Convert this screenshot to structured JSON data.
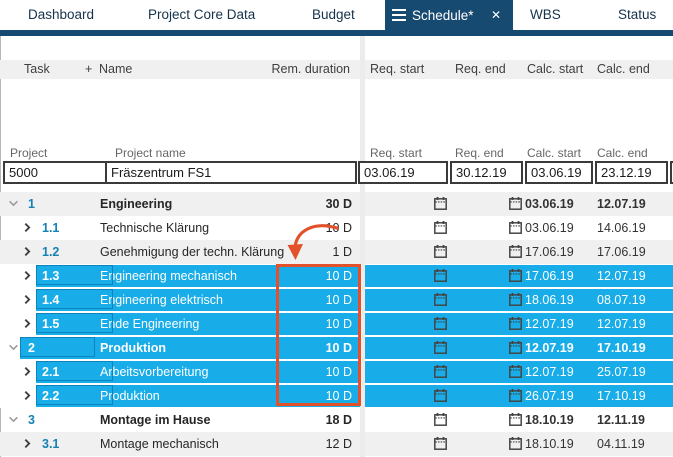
{
  "tabs": {
    "items": [
      {
        "label": "Dashboard"
      },
      {
        "label": "Project Core Data"
      },
      {
        "label": "Budget"
      },
      {
        "label": "Schedule*",
        "active": true,
        "modified": true
      },
      {
        "label": "WBS"
      },
      {
        "label": "Status"
      }
    ]
  },
  "icons": {
    "close": "✕"
  },
  "columns": {
    "task": "Task",
    "add": "+",
    "name": "Name",
    "rem_duration": "Rem. duration",
    "req_start": "Req. start",
    "req_end": "Req. end",
    "calc_start": "Calc. start",
    "calc_end": "Calc. end"
  },
  "project_header": {
    "project": "Project",
    "project_name": "Project name"
  },
  "project": {
    "id": "5000",
    "name": "Fräszentrum FS1",
    "req_start": "03.06.19",
    "req_end": "30.12.19",
    "calc_start": "03.06.19",
    "calc_end": "23.12.19"
  },
  "tasks": [
    {
      "num": "1",
      "name": "Engineering",
      "duration": "30 D",
      "calc_start": "03.06.19",
      "calc_end": "12.07.19",
      "level": 1,
      "parent": true,
      "selected": false
    },
    {
      "num": "1.1",
      "name": "Technische Klärung",
      "duration": "10 D",
      "calc_start": "03.06.19",
      "calc_end": "14.06.19",
      "level": 2,
      "parent": false,
      "selected": false
    },
    {
      "num": "1.2",
      "name": "Genehmigung der techn. Klärung",
      "duration": "1 D",
      "calc_start": "17.06.19",
      "calc_end": "17.06.19",
      "level": 2,
      "parent": false,
      "selected": false
    },
    {
      "num": "1.3",
      "name": "Engineering mechanisch",
      "duration": "10 D",
      "calc_start": "17.06.19",
      "calc_end": "12.07.19",
      "level": 2,
      "parent": false,
      "selected": true
    },
    {
      "num": "1.4",
      "name": "Engineering elektrisch",
      "duration": "10 D",
      "calc_start": "18.06.19",
      "calc_end": "08.07.19",
      "level": 2,
      "parent": false,
      "selected": true
    },
    {
      "num": "1.5",
      "name": "Ende Engineering",
      "duration": "10 D",
      "calc_start": "12.07.19",
      "calc_end": "12.07.19",
      "level": 2,
      "parent": false,
      "selected": true
    },
    {
      "num": "2",
      "name": "Produktion",
      "duration": "10 D",
      "calc_start": "12.07.19",
      "calc_end": "17.10.19",
      "level": 1,
      "parent": true,
      "selected": true
    },
    {
      "num": "2.1",
      "name": "Arbeitsvorbereitung",
      "duration": "10 D",
      "calc_start": "12.07.19",
      "calc_end": "25.07.19",
      "level": 2,
      "parent": false,
      "selected": true
    },
    {
      "num": "2.2",
      "name": "Produktion",
      "duration": "10 D",
      "calc_start": "26.07.19",
      "calc_end": "17.10.19",
      "level": 2,
      "parent": false,
      "selected": true
    },
    {
      "num": "3",
      "name": "Montage im Hause",
      "duration": "18 D",
      "calc_start": "18.10.19",
      "calc_end": "12.11.19",
      "level": 1,
      "parent": true,
      "selected": false
    },
    {
      "num": "3.1",
      "name": "Montage mechanisch",
      "duration": "12 D",
      "calc_start": "18.10.19",
      "calc_end": "04.11.19",
      "level": 2,
      "parent": false,
      "selected": false
    }
  ],
  "colors": {
    "selection_cyan": "#18ace8",
    "active_tab_navy": "#174a70",
    "annotation_red": "#e2512a",
    "task_number_blue": "#1581b4",
    "row_stripe_gray": "#f0f0f0"
  }
}
